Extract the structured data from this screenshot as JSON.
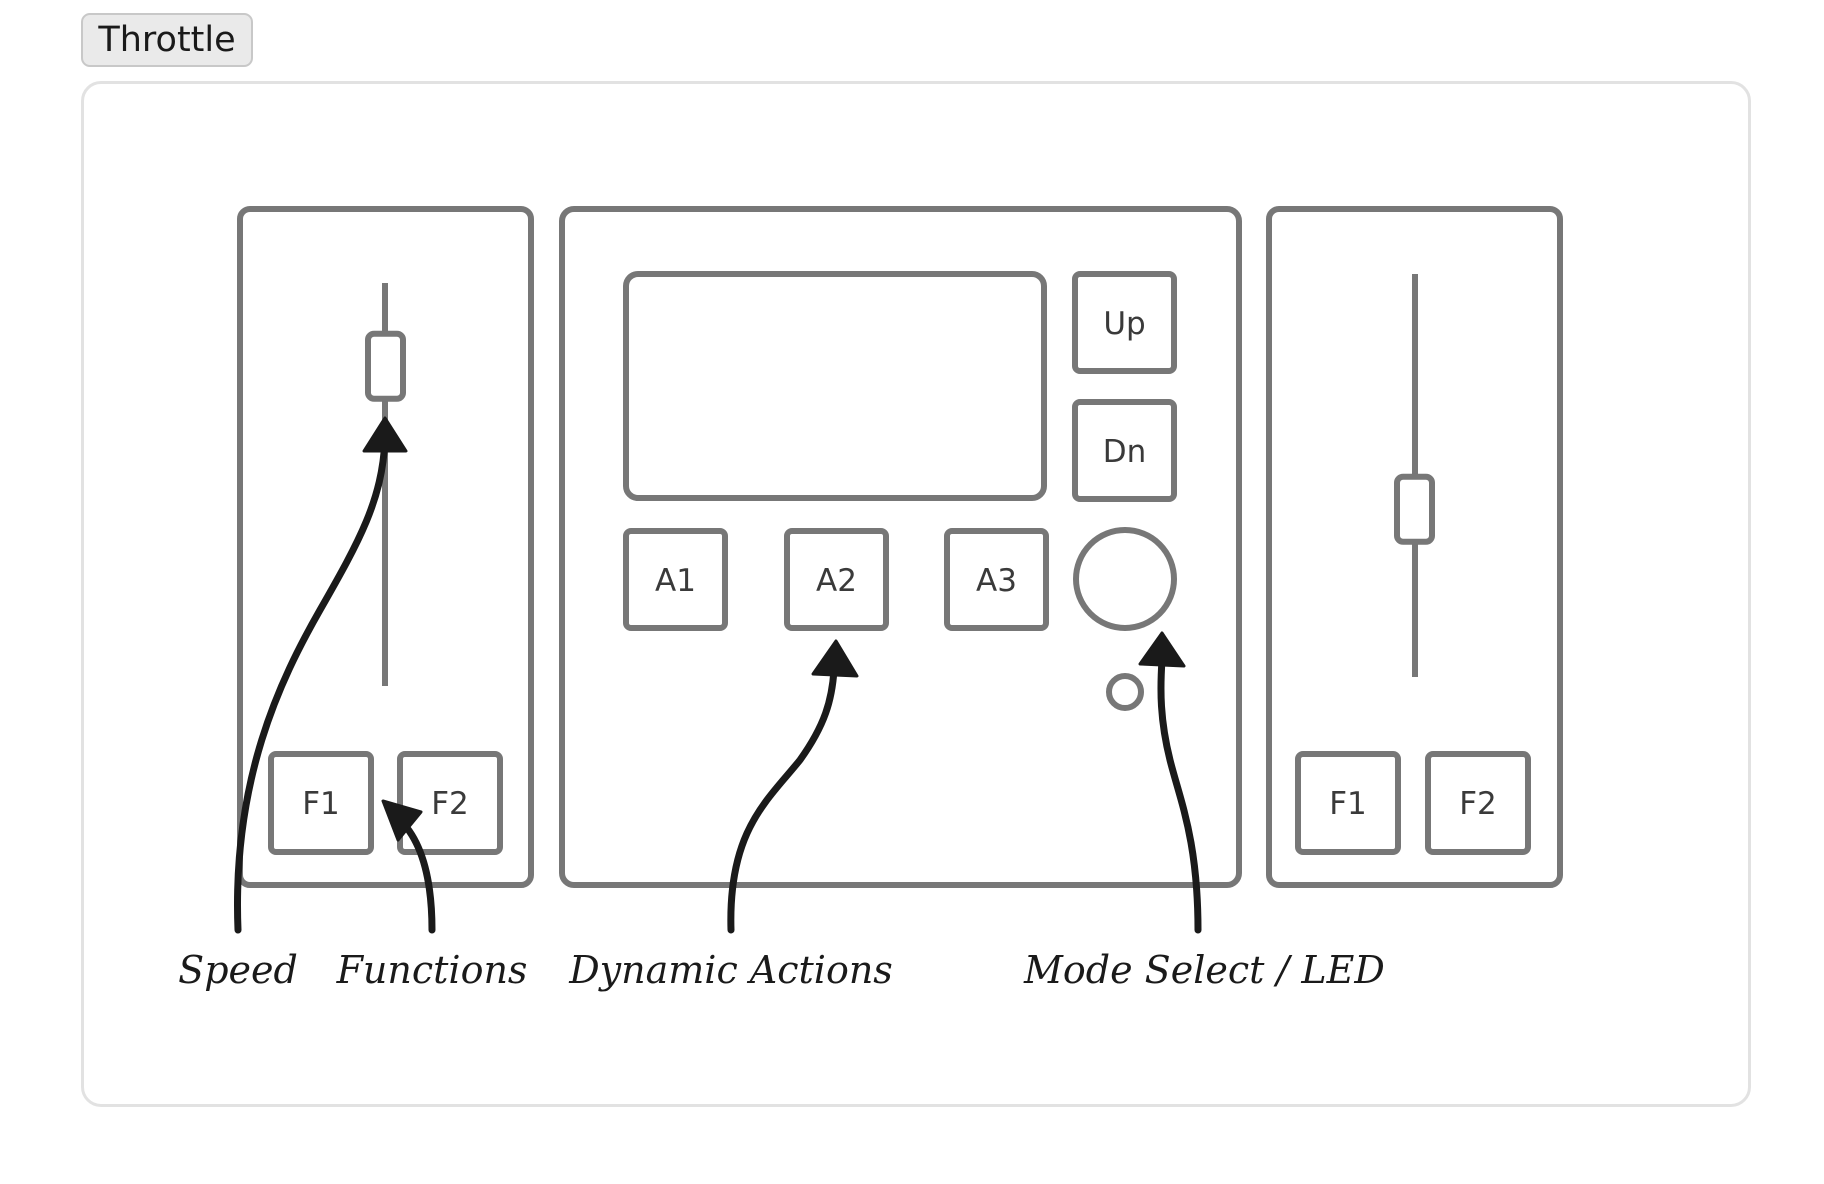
{
  "tab": {
    "label": "Throttle"
  },
  "left_throttle": {
    "buttons": {
      "f1": "F1",
      "f2": "F2"
    },
    "speed_level": 0.15
  },
  "controller": {
    "buttons": {
      "up": "Up",
      "dn": "Dn",
      "a1": "A1",
      "a2": "A2",
      "a3": "A3"
    }
  },
  "right_throttle": {
    "buttons": {
      "f1": "F1",
      "f2": "F2"
    },
    "speed_level": 0.6
  },
  "annotations": {
    "speed": "Speed",
    "functions": "Functions",
    "dynamic_actions": "Dynamic Actions",
    "mode_select": "Mode Select / LED"
  },
  "colors": {
    "hardware_stroke": "#777777",
    "annotation": "#1a1a1a"
  }
}
